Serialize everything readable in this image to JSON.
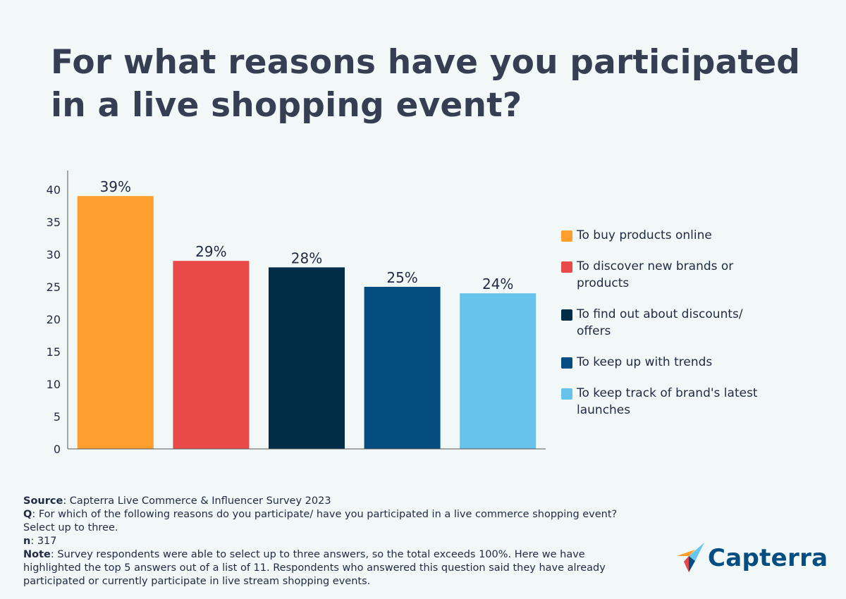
{
  "title": "For what reasons have you participated in a live shopping event?",
  "chart_data": {
    "type": "bar",
    "categories": [
      "To buy products online",
      "To discover new brands or products",
      "To find out about discounts/ offers",
      "To keep up with trends",
      "To keep track of brand's latest launches"
    ],
    "values": [
      39,
      29,
      28,
      25,
      24
    ],
    "data_labels": [
      "39%",
      "29%",
      "28%",
      "25%",
      "24%"
    ],
    "colors": [
      "#fe9e2f",
      "#e84a49",
      "#012e46",
      "#044d80",
      "#67c3ec"
    ],
    "yticks": [
      "0",
      "5",
      "10",
      "15",
      "20",
      "25",
      "30",
      "35",
      "40"
    ],
    "ylim": [
      0,
      43
    ],
    "xlabel": "",
    "ylabel": "",
    "legend_position": "right",
    "grid": false
  },
  "legend": [
    {
      "label": "To buy products online",
      "color": "#fe9e2f"
    },
    {
      "label": "To discover new brands or products",
      "color": "#e84a49"
    },
    {
      "label": "To find out about discounts/ offers",
      "color": "#012e46"
    },
    {
      "label": "To keep up with trends",
      "color": "#044d80"
    },
    {
      "label": "To keep track of brand's latest launches",
      "color": "#67c3ec"
    }
  ],
  "footer": {
    "source_label": "Source",
    "source_text": ": Capterra Live Commerce & Influencer Survey 2023",
    "q_label": "Q",
    "q_text": ": For which of the following reasons do you participate/ have you participated in a live commerce shopping event? Select up to three.",
    "n_label": "n",
    "n_text": ": 317",
    "note_label": "Note",
    "note_text": ": Survey respondents were able to select up to three answers, so the total exceeds 100%. Here we have highlighted the top 5 answers out of a list of 11. Respondents who answered this question said they have already participated or currently participate in live stream shopping events."
  },
  "logo": {
    "text": "Capterra",
    "colors": [
      "#ff9d28",
      "#68c5ed",
      "#044d80",
      "#e54747"
    ]
  }
}
